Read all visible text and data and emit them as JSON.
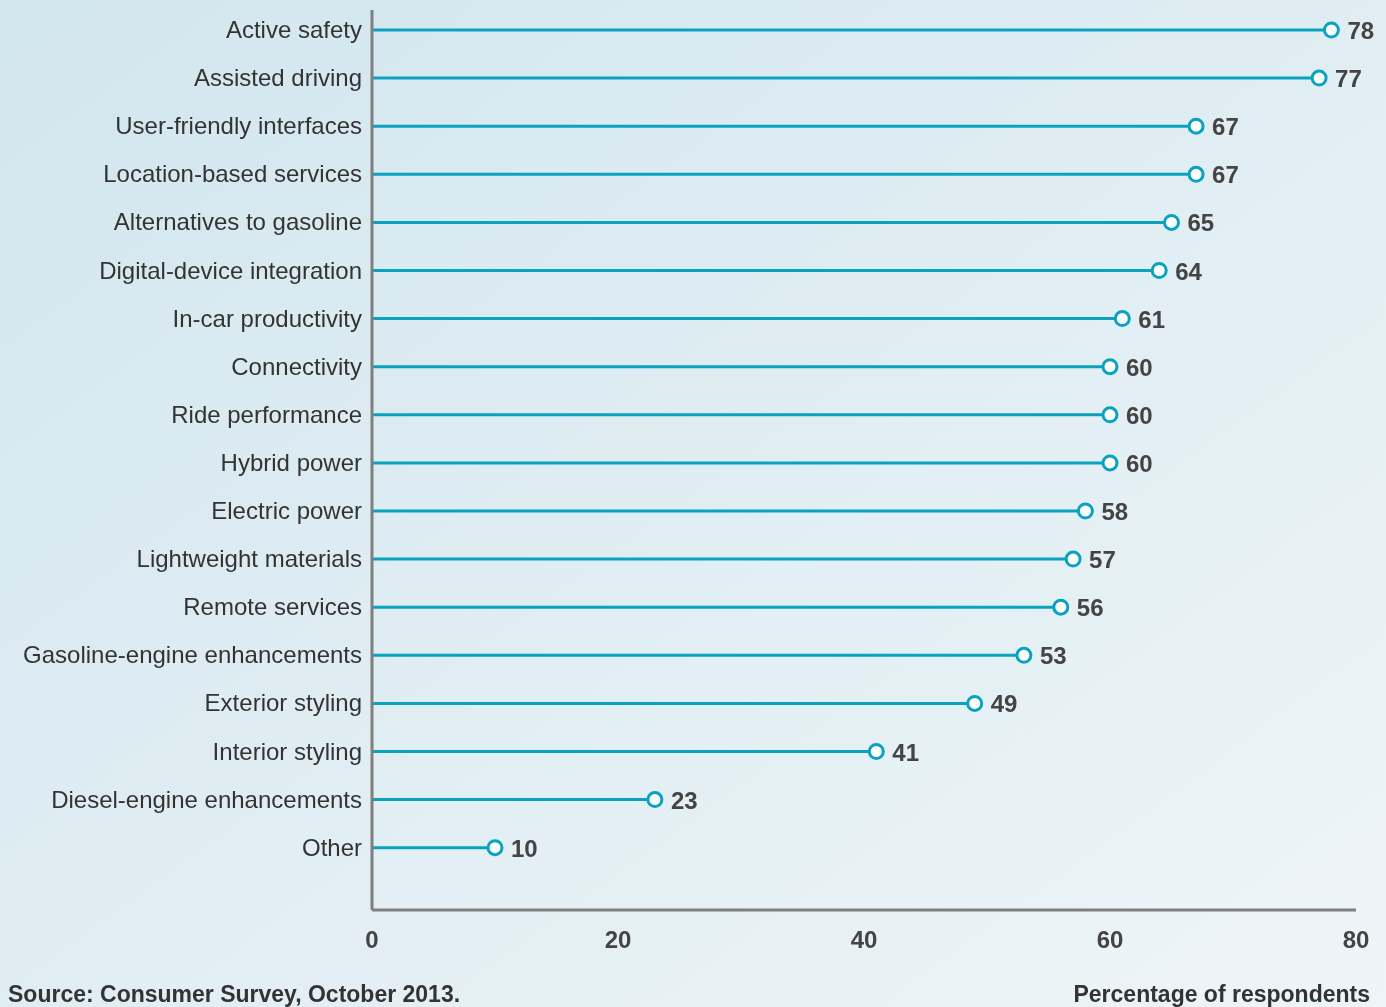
{
  "chart_data": {
    "type": "lollipop",
    "orientation": "horizontal",
    "categories": [
      "Active safety",
      "Assisted driving",
      "User-friendly interfaces",
      "Location-based services",
      "Alternatives to gasoline",
      "Digital-device integration",
      "In-car productivity",
      "Connectivity",
      "Ride performance",
      "Hybrid power",
      "Electric power",
      "Lightweight materials",
      "Remote services",
      "Gasoline-engine enhancements",
      "Exterior styling",
      "Interior styling",
      "Diesel-engine enhancements",
      "Other"
    ],
    "values": [
      78,
      77,
      67,
      67,
      65,
      64,
      61,
      60,
      60,
      60,
      58,
      57,
      56,
      53,
      49,
      41,
      23,
      10
    ],
    "color": "#0aa3bf",
    "marker": "circle",
    "data_labels": true,
    "grid": false,
    "xlim": [
      0,
      80
    ],
    "xticks": [
      0,
      20,
      40,
      60,
      80
    ],
    "xlabel": "Percentage of respondents",
    "annotations": [
      "Source: Consumer Survey, October 2013."
    ]
  }
}
